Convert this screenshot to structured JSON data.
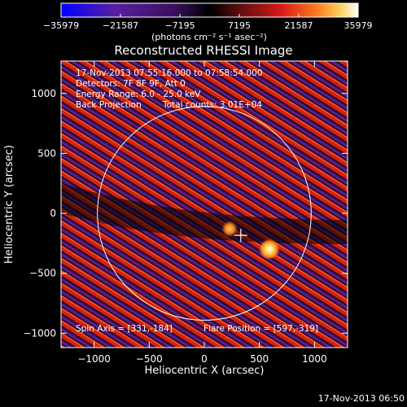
{
  "chart_data": {
    "type": "heatmap",
    "title": "Reconstructed RHESSI Image",
    "xlabel": "Heliocentric X (arcsec)",
    "ylabel": "Heliocentric Y (arcsec)",
    "xlim": [
      -1300,
      1300
    ],
    "ylim": [
      -1120,
      1270
    ],
    "xticks": [
      -1000,
      -500,
      0,
      500,
      1000
    ],
    "xtick_labels": [
      "−1000",
      "−500",
      "0",
      "500",
      "1000"
    ],
    "yticks": [
      -1000,
      -500,
      0,
      500,
      1000
    ],
    "ytick_labels": [
      "−1000",
      "−500",
      "0",
      "500",
      "1000"
    ],
    "solar_limb_radius": 970,
    "colorbar": {
      "ticks": [
        -35979,
        -21587,
        -7195,
        7195,
        21587,
        35979
      ],
      "tick_labels": [
        "−35979",
        "−21587",
        "−7195",
        "7195",
        "21587",
        "35979"
      ],
      "units": "(photons cm⁻² s⁻¹ asec⁻²)",
      "range": [
        -35979,
        35979
      ]
    },
    "annotations": {
      "time_range": "17-Nov-2013 07:55:16.000 to 07:58:54.000",
      "detectors": "Detectors: 7F 8F 9F, Att 0",
      "energy_range": "Energy Range: 6.0 - 25.0 keV",
      "method": "Back Projection",
      "total_counts": "Total counts: 3.01E+04",
      "spin_axis": "Spin Axis = [331,-184]",
      "flare_position": "Flare Position = [597,-319]"
    },
    "spin_axis": [
      331,
      -184
    ],
    "flare_position": [
      597,
      -319
    ],
    "bright_sources": [
      {
        "x": 590,
        "y": -300,
        "level": "max"
      },
      {
        "x": 230,
        "y": -130,
        "level": "high"
      }
    ]
  },
  "footer_timestamp": "17-Nov-2013 06:50",
  "colors": {
    "background": "#000000",
    "foreground": "#ffffff",
    "colormap": [
      "#0000ff",
      "#5a1fa0",
      "#3a1060",
      "#000000",
      "#6e1010",
      "#d81818",
      "#ff7a1e",
      "#ffd060",
      "#ffffff"
    ]
  }
}
